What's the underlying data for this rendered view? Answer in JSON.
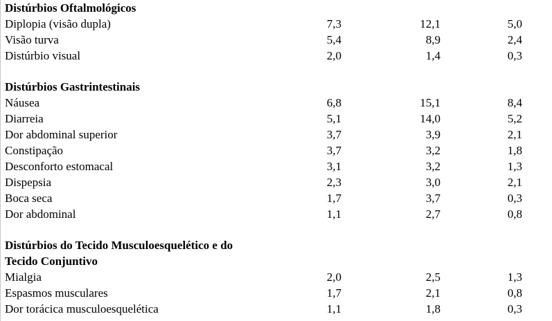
{
  "sections": [
    {
      "category_lines": [
        "Distúrbios Oftalmológicos"
      ],
      "rows": [
        {
          "label": "Diplopia (visão dupla)",
          "v1": "7,3",
          "v2": "12,1",
          "v3": "5,0"
        },
        {
          "label": "Visão turva",
          "v1": "5,4",
          "v2": "8,9",
          "v3": "2,4"
        },
        {
          "label": "Distúrbio visual",
          "v1": "2,0",
          "v2": "1,4",
          "v3": "0,3"
        }
      ]
    },
    {
      "category_lines": [
        "Distúrbios Gastrintestinais"
      ],
      "rows": [
        {
          "label": "Náusea",
          "v1": "6,8",
          "v2": "15,1",
          "v3": "8,4"
        },
        {
          "label": "Diarreia",
          "v1": "5,1",
          "v2": "14,0",
          "v3": "5,2"
        },
        {
          "label": "Dor abdominal superior",
          "v1": "3,7",
          "v2": "3,9",
          "v3": "2,1"
        },
        {
          "label": "Constipação",
          "v1": "3,7",
          "v2": "3,2",
          "v3": "1,8"
        },
        {
          "label": "Desconforto estomacal",
          "v1": "3,1",
          "v2": "3,2",
          "v3": "1,3"
        },
        {
          "label": "Dispepsia",
          "v1": "2,3",
          "v2": "3,0",
          "v3": "2,1"
        },
        {
          "label": "Boca seca",
          "v1": "1,7",
          "v2": "3,7",
          "v3": "0,3"
        },
        {
          "label": "Dor abdominal",
          "v1": "1,1",
          "v2": "2,7",
          "v3": "0,8"
        }
      ]
    },
    {
      "category_lines": [
        "Distúrbios do Tecido Musculoesquelético e do",
        "Tecido Conjuntivo"
      ],
      "rows": [
        {
          "label": "Mialgia",
          "v1": "2,0",
          "v2": "2,5",
          "v3": "1,3"
        },
        {
          "label": "Espasmos musculares",
          "v1": "1,7",
          "v2": "2,1",
          "v3": "0,8"
        },
        {
          "label": "Dor torácica musculoesquelética",
          "v1": "1,1",
          "v2": "1,8",
          "v3": "0,3"
        }
      ]
    }
  ]
}
